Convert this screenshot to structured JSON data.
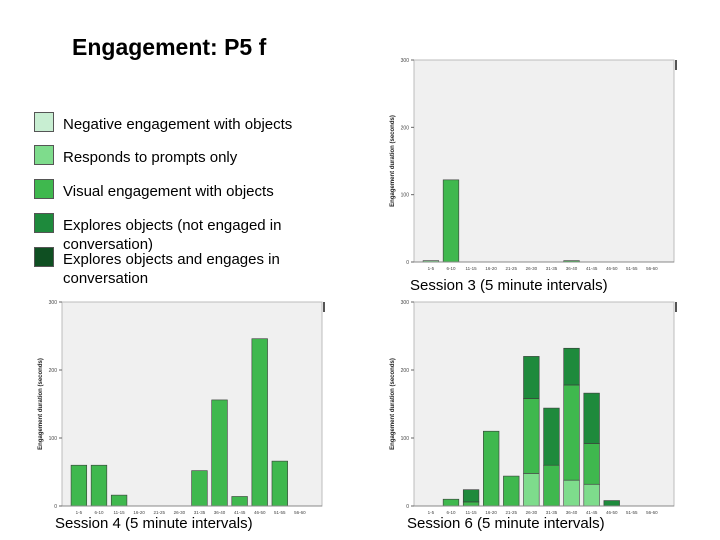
{
  "title": "Engagement: P5 f",
  "legend": [
    {
      "label": "Negative engagement with objects",
      "color": "#c8eed2"
    },
    {
      "label": "Responds to prompts only",
      "color": "#7edc8c"
    },
    {
      "label": "Visual engagement with objects",
      "color": "#3fb84e"
    },
    {
      "label": "Explores objects (not engaged in conversation)",
      "color": "#1e8a3c"
    },
    {
      "label": "Explores objects and engages in conversation",
      "color": "#0f4f22"
    }
  ],
  "chart_data": [
    {
      "type": "bar",
      "caption": "Session 3 (5 minute intervals)",
      "ylabel": "Engagement duration (seconds)",
      "ylim": [
        0,
        300
      ],
      "yticks": [
        0,
        100,
        200,
        300
      ],
      "categories": [
        "1-5",
        "6-10",
        "11-15",
        "16-20",
        "21-25",
        "26-30",
        "31-35",
        "36-40",
        "41-45",
        "46-50",
        "51-55",
        "56-60"
      ],
      "series": [
        {
          "values": [
            2,
            0,
            0,
            0,
            0,
            0,
            0,
            0,
            0,
            0,
            0,
            0
          ],
          "color": "#7edc8c"
        },
        {
          "values": [
            0,
            122,
            0,
            0,
            0,
            0,
            0,
            2,
            0,
            0,
            0,
            0
          ],
          "color": "#3fb84e"
        }
      ]
    },
    {
      "type": "bar",
      "caption": "Session 4 (5 minute intervals)",
      "ylabel": "Engagement duration (seconds)",
      "ylim": [
        0,
        300
      ],
      "yticks": [
        0,
        100,
        200,
        300
      ],
      "categories": [
        "1-5",
        "6-10",
        "11-15",
        "16-20",
        "21-25",
        "26-30",
        "31-35",
        "36-40",
        "41-45",
        "46-50",
        "51-55",
        "56-60"
      ],
      "series": [
        {
          "values": [
            60,
            60,
            16,
            0,
            0,
            0,
            52,
            156,
            14,
            246,
            66,
            0
          ],
          "color": "#3fb84e"
        }
      ]
    },
    {
      "type": "bar",
      "caption": "Session 6 (5 minute intervals)",
      "ylabel": "Engagement duration (seconds)",
      "ylim": [
        0,
        300
      ],
      "yticks": [
        0,
        100,
        200,
        300
      ],
      "categories": [
        "1-5",
        "6-10",
        "11-15",
        "16-20",
        "21-25",
        "26-30",
        "31-35",
        "36-40",
        "41-45",
        "46-50",
        "51-55",
        "56-60"
      ],
      "series": [
        {
          "values": [
            0,
            0,
            0,
            0,
            0,
            48,
            0,
            38,
            32,
            0,
            0,
            0
          ],
          "color": "#7edc8c"
        },
        {
          "values": [
            0,
            10,
            6,
            110,
            44,
            110,
            60,
            140,
            60,
            0,
            0,
            0
          ],
          "color": "#3fb84e"
        },
        {
          "values": [
            0,
            0,
            18,
            0,
            0,
            62,
            84,
            54,
            74,
            8,
            0,
            0
          ],
          "color": "#1e8a3c"
        }
      ]
    }
  ]
}
